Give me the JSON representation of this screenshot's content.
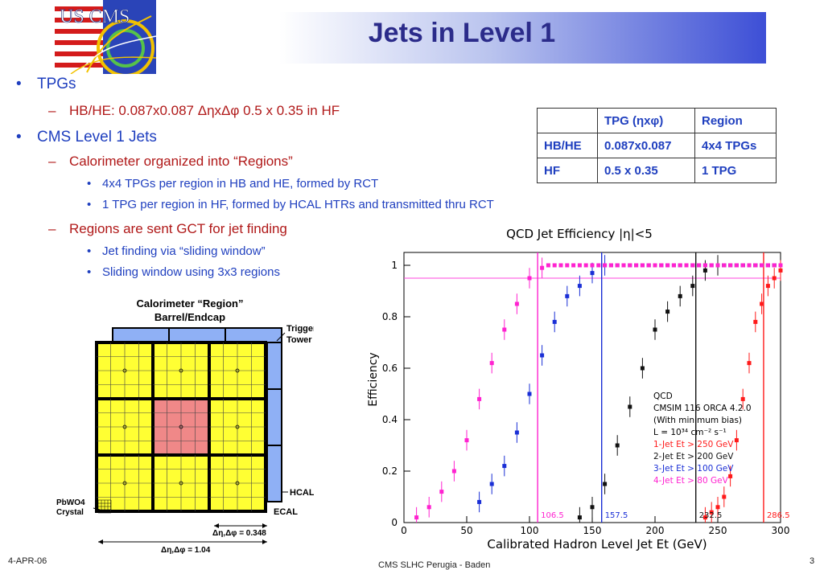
{
  "header": {
    "title": "Jets in Level 1",
    "logo_text": "US CMS"
  },
  "bullets": {
    "tpgs": "TPGs",
    "tpgs_sub": "HB/HE: 0.087x0.087 ΔηxΔφ  0.5 x 0.35 in HF",
    "l1jets": "CMS Level 1 Jets",
    "calo_regions": "Calorimeter organized into “Regions”",
    "hb_he": "4x4 TPGs per region in HB and HE, formed by RCT",
    "hf": "1 TPG per region in HF, formed by HCAL HTRs and transmitted thru RCT",
    "gct": "Regions are sent GCT for jet finding",
    "sliding": "Jet finding via “sliding window”",
    "window3x3": "Sliding window using 3x3 regions"
  },
  "table": {
    "header": [
      "",
      "TPG (ηxφ)",
      "Region"
    ],
    "rows": [
      [
        "HB/HE",
        "0.087x0.087",
        "4x4 TPGs"
      ],
      [
        "HF",
        "0.5 x 0.35",
        "1 TPG"
      ]
    ]
  },
  "diagram": {
    "title_line1": "Calorimeter “Region”",
    "title_line2": "Barrel/Endcap",
    "trigger_tower": [
      "Trigger",
      "Tower"
    ],
    "hcal": "HCAL",
    "ecal": "ECAL",
    "crystal": [
      "PbWO4",
      "Crystal"
    ],
    "dim_small": "Δη,Δφ = 0.348",
    "dim_large": "Δη,Δφ = 1.04",
    "colors": {
      "tile": "#ffff33",
      "center": "#f08888",
      "hcal": "#8fb0f5"
    }
  },
  "chart_data": {
    "type": "scatter",
    "title": "QCD Jet Efficiency |η|<5",
    "xlabel": "Calibrated Hadron Level Jet Et (GeV)",
    "ylabel": "Efficiency",
    "xlim": [
      0,
      300
    ],
    "ylim": [
      0,
      1.05
    ],
    "xticks": [
      0,
      50,
      100,
      150,
      200,
      250,
      300
    ],
    "yticks": [
      0,
      0.2,
      0.4,
      0.6,
      0.8,
      1
    ],
    "reference_line_y": 0.95,
    "legend_title": [
      "QCD",
      "CMSIM 116 ORCA 4.2.0",
      "(With minimum bias)",
      "L = 10³⁴ cm⁻² s⁻¹"
    ],
    "series": [
      {
        "name": "1-Jet Et > 250 GeV",
        "color": "#ff1a1a",
        "threshold": 286.5,
        "threshold_label": "286.5",
        "x": [
          240,
          245,
          250,
          255,
          260,
          265,
          270,
          275,
          280,
          285,
          290,
          295,
          300
        ],
        "y": [
          0.02,
          0.04,
          0.06,
          0.1,
          0.18,
          0.32,
          0.48,
          0.62,
          0.78,
          0.85,
          0.92,
          0.95,
          0.98
        ]
      },
      {
        "name": "2-Jet Et > 200 GeV",
        "color": "#111111",
        "threshold": 232.5,
        "threshold_label": "232.5",
        "x": [
          140,
          150,
          160,
          170,
          180,
          190,
          200,
          210,
          220,
          230,
          240,
          250
        ],
        "y": [
          0.02,
          0.06,
          0.15,
          0.3,
          0.45,
          0.6,
          0.75,
          0.82,
          0.88,
          0.92,
          0.98,
          1.0
        ]
      },
      {
        "name": "3-Jet Et > 100 GeV",
        "color": "#1a2fd6",
        "threshold": 157.5,
        "threshold_label": "157.5",
        "x": [
          60,
          70,
          80,
          90,
          100,
          110,
          120,
          130,
          140,
          150,
          160
        ],
        "y": [
          0.08,
          0.15,
          0.22,
          0.35,
          0.5,
          0.65,
          0.78,
          0.88,
          0.92,
          0.97,
          1.0
        ]
      },
      {
        "name": "4-Jet Et > 80 GeV",
        "color": "#ff22d0",
        "threshold": 106.5,
        "threshold_label": "106.5",
        "x": [
          10,
          20,
          30,
          40,
          50,
          60,
          70,
          80,
          90,
          100,
          110
        ],
        "y": [
          0.02,
          0.06,
          0.12,
          0.2,
          0.32,
          0.48,
          0.62,
          0.75,
          0.85,
          0.95,
          0.99
        ]
      }
    ]
  },
  "footer": {
    "date": "4-APR-06",
    "center": "CMS SLHC Perugia - Baden",
    "page": "3"
  }
}
